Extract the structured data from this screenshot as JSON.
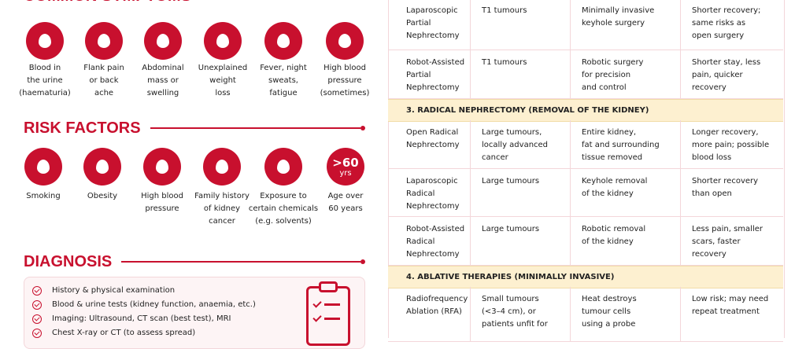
{
  "symptoms": {
    "title": "COMMON SYMPTOMS",
    "items": [
      [
        "Blood in",
        "the urine",
        "(haematuria)"
      ],
      [
        "Flank pain",
        "or back",
        "ache"
      ],
      [
        "Abdominal",
        "mass or",
        "swelling"
      ],
      [
        "Unexplained",
        "weight",
        "loss"
      ],
      [
        "Fever, night",
        "sweats,",
        "fatigue"
      ],
      [
        "High blood",
        "pressure",
        "(sometimes)"
      ]
    ]
  },
  "risk_factors": {
    "title": "RISK FACTORS",
    "age_icon": [
      ">60",
      "yrs"
    ],
    "items": [
      [
        "Smoking"
      ],
      [
        "Obesity"
      ],
      [
        "High blood",
        "pressure"
      ],
      [
        "Family history",
        "of kidney",
        "cancer"
      ],
      [
        "Exposure to",
        "certain chemicals",
        "(e.g. solvents)"
      ],
      [
        "Age over",
        "60 years"
      ]
    ]
  },
  "diagnosis": {
    "title": "DIAGNOSIS",
    "items": [
      "History & physical examination",
      "Blood & urine tests (kidney function, anaemia, etc.)",
      "Imaging: Ultrasound, CT scan (best test), MRI",
      "Chest X-ray or CT (to assess spread)"
    ]
  },
  "table": {
    "rows": [
      {
        "cells": [
          [
            "Laparoscopic",
            "Partial",
            "Nephrectomy"
          ],
          [
            "T1 tumours"
          ],
          [
            "Minimally invasive",
            "keyhole surgery"
          ],
          [
            "Shorter recovery;",
            "same risks as",
            "open surgery"
          ]
        ]
      },
      {
        "cells": [
          [
            "Robot-Assisted",
            "Partial",
            "Nephrectomy"
          ],
          [
            "T1 tumours"
          ],
          [
            "Robotic surgery",
            "for precision",
            "and control"
          ],
          [
            "Shorter stay, less",
            "pain, quicker",
            "recovery"
          ]
        ]
      },
      {
        "section": "3. RADICAL NEPHRECTOMY (REMOVAL OF THE KIDNEY)"
      },
      {
        "cells": [
          [
            "Open Radical",
            "Nephrectomy"
          ],
          [
            "Large tumours,",
            "locally advanced",
            "cancer"
          ],
          [
            "Entire kidney,",
            "fat and surrounding",
            "tissue removed"
          ],
          [
            "Longer recovery,",
            "more pain; possible",
            "blood loss"
          ]
        ]
      },
      {
        "cells": [
          [
            "Laparoscopic",
            "Radical",
            "Nephrectomy"
          ],
          [
            "Large tumours"
          ],
          [
            "Keyhole removal",
            "of the kidney"
          ],
          [
            "Shorter recovery",
            "than open"
          ]
        ]
      },
      {
        "cells": [
          [
            "Robot-Assisted",
            "Radical",
            "Nephrectomy"
          ],
          [
            "Large tumours"
          ],
          [
            "Robotic removal",
            "of the kidney"
          ],
          [
            "Less pain, smaller",
            "scars, faster",
            "recovery"
          ]
        ]
      },
      {
        "section": "4. ABLATIVE THERAPIES (MINIMALLY INVASIVE)"
      },
      {
        "cells": [
          [
            "Radiofrequency",
            "Ablation (RFA)"
          ],
          [
            "Small tumours",
            "(<3–4 cm), or",
            "patients unfit for"
          ],
          [
            "Heat destroys",
            "tumour cells",
            "using a probe"
          ],
          [
            "Low risk; may need",
            "repeat treatment"
          ]
        ]
      }
    ]
  }
}
